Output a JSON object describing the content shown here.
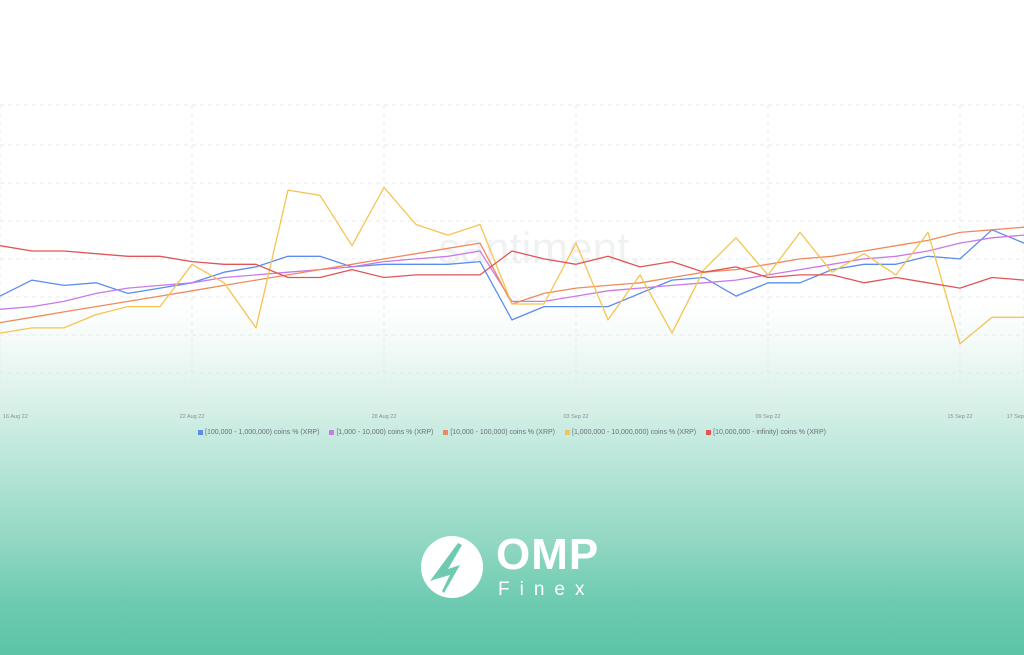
{
  "chart_data": {
    "type": "line",
    "x": [
      "16 Aug 22",
      "17 Aug 22",
      "18 Aug 22",
      "19 Aug 22",
      "20 Aug 22",
      "21 Aug 22",
      "22 Aug 22",
      "23 Aug 22",
      "24 Aug 22",
      "25 Aug 22",
      "26 Aug 22",
      "27 Aug 22",
      "28 Aug 22",
      "29 Aug 22",
      "30 Aug 22",
      "31 Aug 22",
      "01 Sep 22",
      "02 Sep 22",
      "03 Sep 22",
      "04 Sep 22",
      "05 Sep 22",
      "06 Sep 22",
      "07 Sep 22",
      "08 Sep 22",
      "09 Sep 22",
      "10 Sep 22",
      "11 Sep 22",
      "12 Sep 22",
      "13 Sep 22",
      "14 Sep 22",
      "15 Sep 22",
      "16 Sep 22",
      "17 Sep 22"
    ],
    "x_ticks": [
      "16 Aug 22",
      "22 Aug 22",
      "28 Aug 22",
      "03 Sep 22",
      "09 Sep 22",
      "15 Sep 22",
      "17 Sep"
    ],
    "x_tick_indices": [
      0,
      6,
      12,
      18,
      24,
      30,
      32
    ],
    "ylim": [
      0,
      100
    ],
    "grid": true,
    "legend_position": "bottom",
    "watermark": "santiment.",
    "series": [
      {
        "name": "[100,000  - 1,000,000) coins % (XRP)",
        "color": "#5b8def",
        "values": [
          43,
          49,
          47,
          48,
          44,
          46,
          48,
          52,
          54,
          58,
          58,
          54,
          55,
          55,
          55,
          56,
          34,
          39,
          39,
          39,
          44,
          49,
          50,
          43,
          48,
          48,
          53,
          55,
          55,
          58,
          57,
          68,
          63
        ]
      },
      {
        "name": "[1,000 - 10,000) coins % (XRP)",
        "color": "#c87ae8",
        "values": [
          38,
          39,
          41,
          44,
          46,
          47,
          48,
          50,
          51,
          52,
          53,
          54,
          56,
          57,
          58,
          60,
          41,
          41,
          43,
          45,
          46,
          47,
          48,
          49,
          51,
          53,
          55,
          57,
          58,
          60,
          63,
          65,
          66
        ]
      },
      {
        "name": "[10,000 - 100,000) coins % (XRP)",
        "color": "#f08a5d",
        "values": [
          33,
          35,
          37,
          39,
          41,
          43,
          45,
          47,
          49,
          51,
          53,
          55,
          57,
          59,
          61,
          63,
          40,
          44,
          46,
          47,
          48,
          50,
          52,
          53,
          55,
          57,
          58,
          60,
          62,
          64,
          67,
          68,
          69
        ]
      },
      {
        "name": "[1,000,000 - 10,000,000) coins % (XRP)",
        "color": "#f5c451",
        "values": [
          29,
          31,
          31,
          36,
          39,
          39,
          55,
          48,
          31,
          83,
          81,
          62,
          84,
          70,
          66,
          70,
          40,
          40,
          63,
          34,
          51,
          29,
          53,
          65,
          51,
          67,
          52,
          59,
          51,
          67,
          25,
          35,
          35
        ]
      },
      {
        "name": "[10,000,000 - infinity) coins % (XRP)",
        "color": "#e05555",
        "values": [
          62,
          60,
          60,
          59,
          58,
          58,
          56,
          55,
          55,
          50,
          50,
          53,
          50,
          51,
          51,
          51,
          60,
          57,
          55,
          58,
          54,
          56,
          52,
          54,
          50,
          51,
          51,
          48,
          50,
          48,
          46,
          50,
          49
        ]
      }
    ]
  },
  "brand": {
    "name": "OMP",
    "sub": "Finex"
  }
}
